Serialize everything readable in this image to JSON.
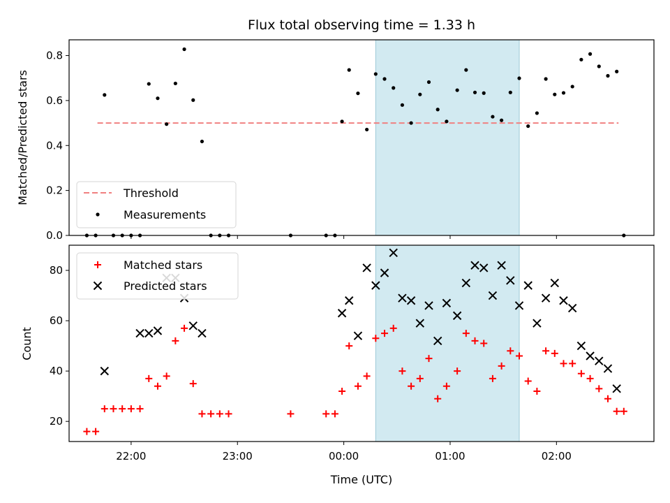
{
  "chart_data": [
    {
      "type": "scatter",
      "title": "Flux total observing time = 1.33 h",
      "xlabel": "",
      "ylabel": "Matched/Predicted stars",
      "ylim": [
        0,
        0.87
      ],
      "xlim": [
        "21:25",
        "02:55"
      ],
      "yticks": [
        "0.0",
        "0.2",
        "0.4",
        "0.6",
        "0.8"
      ],
      "shaded_region": {
        "start": "00:18",
        "end": "01:39",
        "color": "#add8e6"
      },
      "threshold": {
        "name": "Threshold",
        "value": 0.5,
        "x_start": "21:41",
        "x_end": "02:35",
        "color": "#f08080"
      },
      "legend": {
        "position": "lower-left",
        "entries": [
          "Threshold",
          "Measurements"
        ]
      },
      "series": [
        {
          "name": "Measurements",
          "marker": "dot",
          "color": "#000000",
          "x": [
            "21:35",
            "21:40",
            "21:45",
            "21:50",
            "21:55",
            "22:00",
            "22:05",
            "22:10",
            "22:15",
            "22:20",
            "22:25",
            "22:30",
            "22:35",
            "22:40",
            "22:45",
            "22:50",
            "22:55",
            "23:30",
            "23:50",
            "23:55",
            "23:59",
            "00:03",
            "00:08",
            "00:13",
            "00:18",
            "00:23",
            "00:28",
            "00:33",
            "00:38",
            "00:43",
            "00:48",
            "00:53",
            "00:58",
            "01:04",
            "01:09",
            "01:14",
            "01:19",
            "01:24",
            "01:29",
            "01:34",
            "01:39",
            "01:44",
            "01:49",
            "01:54",
            "01:59",
            "02:04",
            "02:09",
            "02:14",
            "02:19",
            "02:24",
            "02:29",
            "02:34",
            "02:38"
          ],
          "values": [
            0.0,
            0.0,
            0.625,
            0.0,
            0.0,
            0.0,
            0.0,
            0.674,
            0.61,
            0.495,
            0.676,
            0.828,
            0.602,
            0.418,
            0.0,
            0.0,
            0.0,
            0.0,
            0.0,
            0.0,
            0.507,
            0.736,
            0.632,
            0.471,
            0.718,
            0.696,
            0.656,
            0.58,
            0.5,
            0.627,
            0.682,
            0.56,
            0.507,
            0.646,
            0.736,
            0.636,
            0.633,
            0.528,
            0.512,
            0.636,
            0.699,
            0.486,
            0.544,
            0.696,
            0.627,
            0.634,
            0.662,
            0.782,
            0.807,
            0.752,
            0.71,
            0.729,
            0.0
          ]
        }
      ]
    },
    {
      "type": "scatter",
      "title": "",
      "xlabel": "Time (UTC)",
      "ylabel": "Count",
      "ylim": [
        12,
        90
      ],
      "xlim": [
        "21:25",
        "02:55"
      ],
      "xticks": [
        "22:00",
        "23:00",
        "00:00",
        "01:00",
        "02:00"
      ],
      "yticks": [
        "20",
        "40",
        "60",
        "80"
      ],
      "shaded_region": {
        "start": "00:18",
        "end": "01:39",
        "color": "#add8e6"
      },
      "legend": {
        "position": "top-left",
        "entries": [
          "Matched stars",
          "Predicted stars"
        ]
      },
      "series": [
        {
          "name": "Matched stars",
          "marker": "plus",
          "color": "#ff0000",
          "x": [
            "21:35",
            "21:40",
            "21:45",
            "21:50",
            "21:55",
            "22:00",
            "22:05",
            "22:10",
            "22:15",
            "22:20",
            "22:25",
            "22:30",
            "22:35",
            "22:40",
            "22:45",
            "22:50",
            "22:55",
            "23:30",
            "23:50",
            "23:55",
            "23:59",
            "00:03",
            "00:08",
            "00:13",
            "00:18",
            "00:23",
            "00:28",
            "00:33",
            "00:38",
            "00:43",
            "00:48",
            "00:53",
            "00:58",
            "01:04",
            "01:09",
            "01:14",
            "01:19",
            "01:24",
            "01:29",
            "01:34",
            "01:39",
            "01:44",
            "01:49",
            "01:54",
            "01:59",
            "02:04",
            "02:09",
            "02:14",
            "02:19",
            "02:24",
            "02:29",
            "02:34",
            "02:38"
          ],
          "values": [
            16,
            16,
            25,
            25,
            25,
            25,
            25,
            37,
            34,
            38,
            52,
            57,
            35,
            23,
            23,
            23,
            23,
            23,
            23,
            23,
            32,
            50,
            34,
            38,
            53,
            55,
            57,
            40,
            34,
            37,
            45,
            29,
            34,
            40,
            55,
            52,
            51,
            37,
            42,
            48,
            46,
            36,
            32,
            48,
            47,
            43,
            43,
            39,
            37,
            33,
            29,
            24,
            24
          ]
        },
        {
          "name": "Predicted stars",
          "marker": "x",
          "color": "#000000",
          "x": [
            "21:45",
            "22:05",
            "22:10",
            "22:15",
            "22:20",
            "22:25",
            "22:30",
            "22:35",
            "22:40",
            "23:59",
            "00:03",
            "00:08",
            "00:13",
            "00:18",
            "00:23",
            "00:28",
            "00:33",
            "00:38",
            "00:43",
            "00:48",
            "00:53",
            "00:58",
            "01:04",
            "01:09",
            "01:14",
            "01:19",
            "01:24",
            "01:29",
            "01:34",
            "01:39",
            "01:44",
            "01:49",
            "01:54",
            "01:59",
            "02:04",
            "02:09",
            "02:14",
            "02:19",
            "02:24",
            "02:29",
            "02:34"
          ],
          "values": [
            40,
            55,
            55,
            56,
            77,
            77,
            69,
            58,
            55,
            63,
            68,
            54,
            81,
            74,
            79,
            87,
            69,
            68,
            59,
            66,
            52,
            67,
            62,
            75,
            82,
            81,
            70,
            82,
            76,
            66,
            74,
            59,
            69,
            75,
            68,
            65,
            50,
            46,
            44,
            41,
            33
          ]
        }
      ]
    }
  ]
}
